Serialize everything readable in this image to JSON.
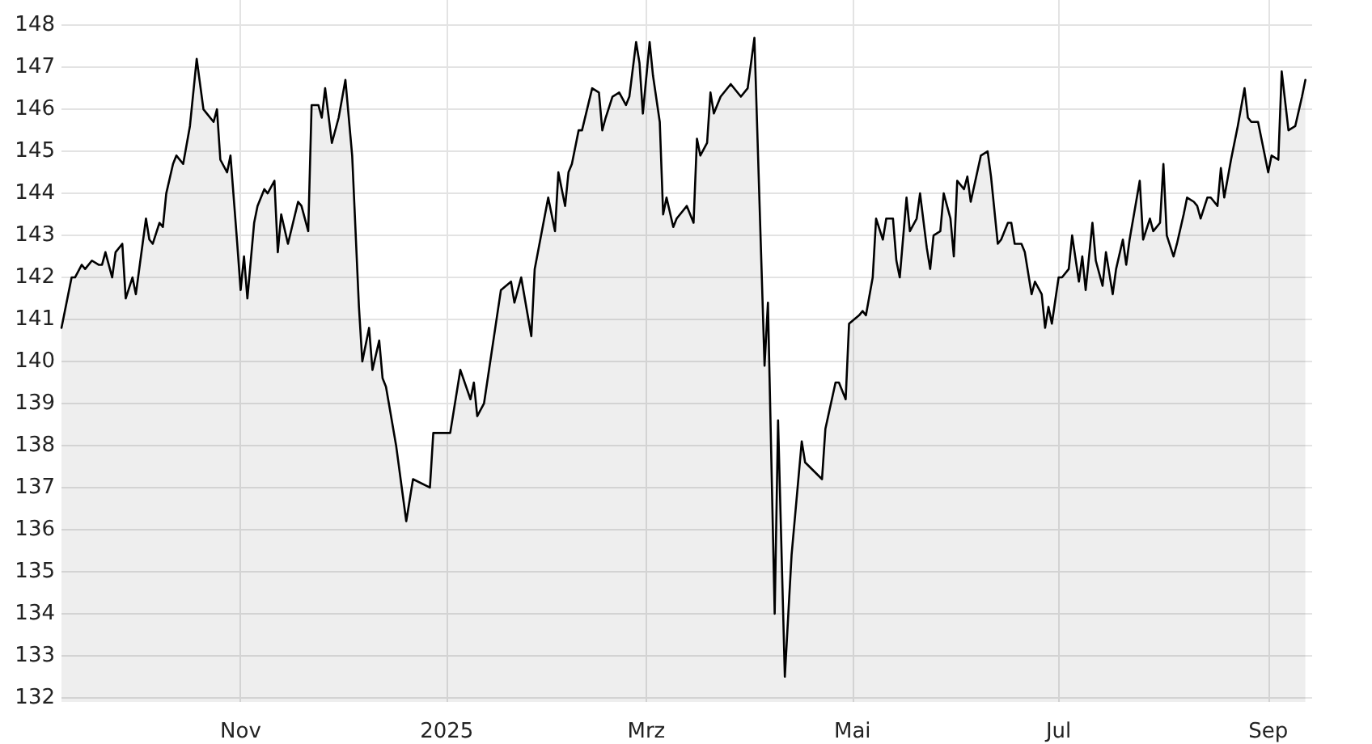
{
  "chart_data": {
    "type": "area",
    "color": "#000000",
    "marker": "none",
    "line_style": "solid",
    "grid": true,
    "xlim": [
      "2024-09-09",
      "2025-09-14"
    ],
    "xticks": [
      {
        "value": "2024-11-01",
        "label": "Nov"
      },
      {
        "value": "2025-01-01",
        "label": "2025"
      },
      {
        "value": "2025-03-01",
        "label": "Mrz"
      },
      {
        "value": "2025-05-01",
        "label": "Mai"
      },
      {
        "value": "2025-07-01",
        "label": "Jul"
      },
      {
        "value": "2025-09-01",
        "label": "Sep"
      }
    ],
    "ylim": [
      131.9,
      148.6
    ],
    "yticks": [
      132,
      133,
      134,
      135,
      136,
      137,
      138,
      139,
      140,
      141,
      142,
      143,
      144,
      145,
      146,
      147,
      148
    ],
    "x": [
      "2024-09-09",
      "2024-09-11",
      "2024-09-12",
      "2024-09-13",
      "2024-09-15",
      "2024-09-16",
      "2024-09-18",
      "2024-09-20",
      "2024-09-21",
      "2024-09-22",
      "2024-09-24",
      "2024-09-25",
      "2024-09-27",
      "2024-09-28",
      "2024-09-30",
      "2024-10-01",
      "2024-10-03",
      "2024-10-04",
      "2024-10-05",
      "2024-10-06",
      "2024-10-08",
      "2024-10-09",
      "2024-10-10",
      "2024-10-12",
      "2024-10-13",
      "2024-10-15",
      "2024-10-17",
      "2024-10-19",
      "2024-10-21",
      "2024-10-22",
      "2024-10-24",
      "2024-10-25",
      "2024-10-26",
      "2024-10-28",
      "2024-10-29",
      "2024-10-31",
      "2024-11-01",
      "2024-11-02",
      "2024-11-03",
      "2024-11-05",
      "2024-11-06",
      "2024-11-08",
      "2024-11-09",
      "2024-11-11",
      "2024-11-12",
      "2024-11-13",
      "2024-11-15",
      "2024-11-18",
      "2024-11-19",
      "2024-11-21",
      "2024-11-22",
      "2024-11-24",
      "2024-11-25",
      "2024-11-26",
      "2024-11-28",
      "2024-11-30",
      "2024-12-02",
      "2024-12-04",
      "2024-12-06",
      "2024-12-07",
      "2024-12-09",
      "2024-12-10",
      "2024-12-12",
      "2024-12-13",
      "2024-12-14",
      "2024-12-17",
      "2024-12-20",
      "2024-12-22",
      "2024-12-27",
      "2024-12-28",
      "2025-01-02",
      "2025-01-05",
      "2025-01-08",
      "2025-01-09",
      "2025-01-10",
      "2025-01-12",
      "2025-01-17",
      "2025-01-20",
      "2025-01-21",
      "2025-01-23",
      "2025-01-26",
      "2025-01-27",
      "2025-01-31",
      "2025-02-02",
      "2025-02-03",
      "2025-02-05",
      "2025-02-06",
      "2025-02-07",
      "2025-02-09",
      "2025-02-10",
      "2025-02-13",
      "2025-02-15",
      "2025-02-16",
      "2025-02-17",
      "2025-02-19",
      "2025-02-21",
      "2025-02-23",
      "2025-02-24",
      "2025-02-26",
      "2025-02-27",
      "2025-02-28",
      "2025-03-02",
      "2025-03-03",
      "2025-03-05",
      "2025-03-06",
      "2025-03-07",
      "2025-03-09",
      "2025-03-10",
      "2025-03-13",
      "2025-03-15",
      "2025-03-16",
      "2025-03-17",
      "2025-03-19",
      "2025-03-20",
      "2025-03-21",
      "2025-03-23",
      "2025-03-26",
      "2025-03-29",
      "2025-03-31",
      "2025-04-02",
      "2025-04-05",
      "2025-04-06",
      "2025-04-08",
      "2025-04-09",
      "2025-04-11",
      "2025-04-13",
      "2025-04-16",
      "2025-04-17",
      "2025-04-22",
      "2025-04-23",
      "2025-04-26",
      "2025-04-27",
      "2025-04-29",
      "2025-04-30",
      "2025-05-03",
      "2025-05-04",
      "2025-05-05",
      "2025-05-07",
      "2025-05-08",
      "2025-05-10",
      "2025-05-11",
      "2025-05-13",
      "2025-05-14",
      "2025-05-15",
      "2025-05-17",
      "2025-05-18",
      "2025-05-20",
      "2025-05-21",
      "2025-05-23",
      "2025-05-24",
      "2025-05-25",
      "2025-05-27",
      "2025-05-28",
      "2025-05-30",
      "2025-05-31",
      "2025-06-01",
      "2025-06-03",
      "2025-06-04",
      "2025-06-05",
      "2025-06-08",
      "2025-06-10",
      "2025-06-11",
      "2025-06-13",
      "2025-06-14",
      "2025-06-16",
      "2025-06-17",
      "2025-06-18",
      "2025-06-20",
      "2025-06-21",
      "2025-06-23",
      "2025-06-24",
      "2025-06-26",
      "2025-06-27",
      "2025-06-28",
      "2025-06-29",
      "2025-07-01",
      "2025-07-02",
      "2025-07-04",
      "2025-07-05",
      "2025-07-07",
      "2025-07-08",
      "2025-07-09",
      "2025-07-11",
      "2025-07-12",
      "2025-07-14",
      "2025-07-15",
      "2025-07-17",
      "2025-07-18",
      "2025-07-20",
      "2025-07-21",
      "2025-07-22",
      "2025-07-25",
      "2025-07-26",
      "2025-07-28",
      "2025-07-29",
      "2025-07-31",
      "2025-08-01",
      "2025-08-02",
      "2025-08-04",
      "2025-08-05",
      "2025-08-07",
      "2025-08-08",
      "2025-08-10",
      "2025-08-11",
      "2025-08-12",
      "2025-08-14",
      "2025-08-15",
      "2025-08-17",
      "2025-08-18",
      "2025-08-19",
      "2025-08-21",
      "2025-08-23",
      "2025-08-25",
      "2025-08-26",
      "2025-08-27",
      "2025-08-29",
      "2025-08-30",
      "2025-09-01",
      "2025-09-02",
      "2025-09-04",
      "2025-09-05",
      "2025-09-07",
      "2025-09-09",
      "2025-09-11",
      "2025-09-12"
    ],
    "values": [
      140.8,
      141.6,
      142.0,
      142.0,
      142.3,
      142.2,
      142.4,
      142.3,
      142.3,
      142.6,
      142.0,
      142.6,
      142.8,
      141.5,
      142.0,
      141.6,
      142.8,
      143.4,
      142.9,
      142.8,
      143.3,
      143.2,
      144.0,
      144.7,
      144.9,
      144.7,
      145.6,
      147.2,
      146.0,
      145.9,
      145.7,
      146.0,
      144.8,
      144.5,
      144.9,
      142.8,
      141.7,
      142.5,
      141.5,
      143.3,
      143.7,
      144.1,
      144.0,
      144.3,
      142.6,
      143.5,
      142.8,
      143.8,
      143.7,
      143.1,
      146.1,
      146.1,
      145.8,
      146.5,
      145.2,
      145.8,
      146.7,
      144.9,
      141.3,
      140.0,
      140.8,
      139.8,
      140.5,
      139.6,
      139.4,
      138.0,
      136.2,
      137.2,
      137.0,
      138.3,
      138.3,
      139.8,
      139.1,
      139.5,
      138.7,
      139.0,
      141.7,
      141.9,
      141.4,
      142.0,
      140.6,
      142.2,
      143.9,
      143.1,
      144.5,
      143.7,
      144.5,
      144.7,
      145.5,
      145.5,
      146.5,
      146.4,
      145.5,
      145.8,
      146.3,
      146.4,
      146.1,
      146.3,
      147.6,
      147.1,
      145.9,
      147.6,
      146.8,
      145.7,
      143.5,
      143.9,
      143.2,
      143.4,
      143.7,
      143.3,
      145.3,
      144.9,
      145.2,
      146.4,
      145.9,
      146.3,
      146.6,
      146.3,
      146.5,
      147.7,
      139.9,
      141.4,
      134.0,
      138.6,
      132.5,
      135.4,
      138.1,
      137.6,
      137.2,
      138.4,
      139.5,
      139.5,
      139.1,
      140.9,
      141.1,
      141.2,
      141.1,
      142.0,
      143.4,
      142.9,
      143.4,
      143.4,
      142.4,
      142.0,
      143.9,
      143.1,
      143.4,
      144.0,
      142.7,
      142.2,
      143.0,
      143.1,
      144.0,
      143.4,
      142.5,
      144.3,
      144.1,
      144.4,
      143.8,
      144.9,
      145.0,
      144.4,
      142.8,
      142.9,
      143.3,
      143.3,
      142.8,
      142.8,
      142.6,
      141.6,
      141.9,
      141.6,
      140.8,
      141.3,
      140.9,
      142.0,
      142.0,
      142.2,
      143.0,
      141.9,
      142.5,
      141.7,
      143.3,
      142.4,
      141.8,
      142.6,
      141.6,
      142.2,
      142.9,
      142.3,
      142.9,
      144.3,
      142.9,
      143.4,
      143.1,
      143.3,
      144.7,
      143.0,
      142.5,
      142.8,
      143.5,
      143.9,
      143.8,
      143.7,
      143.4,
      143.9,
      143.9,
      143.7,
      144.6,
      143.9,
      144.8,
      145.6,
      146.5,
      145.8,
      145.7,
      145.7,
      145.3,
      144.5,
      144.9,
      144.8,
      146.9,
      145.5,
      145.6,
      146.3,
      146.7
    ]
  }
}
